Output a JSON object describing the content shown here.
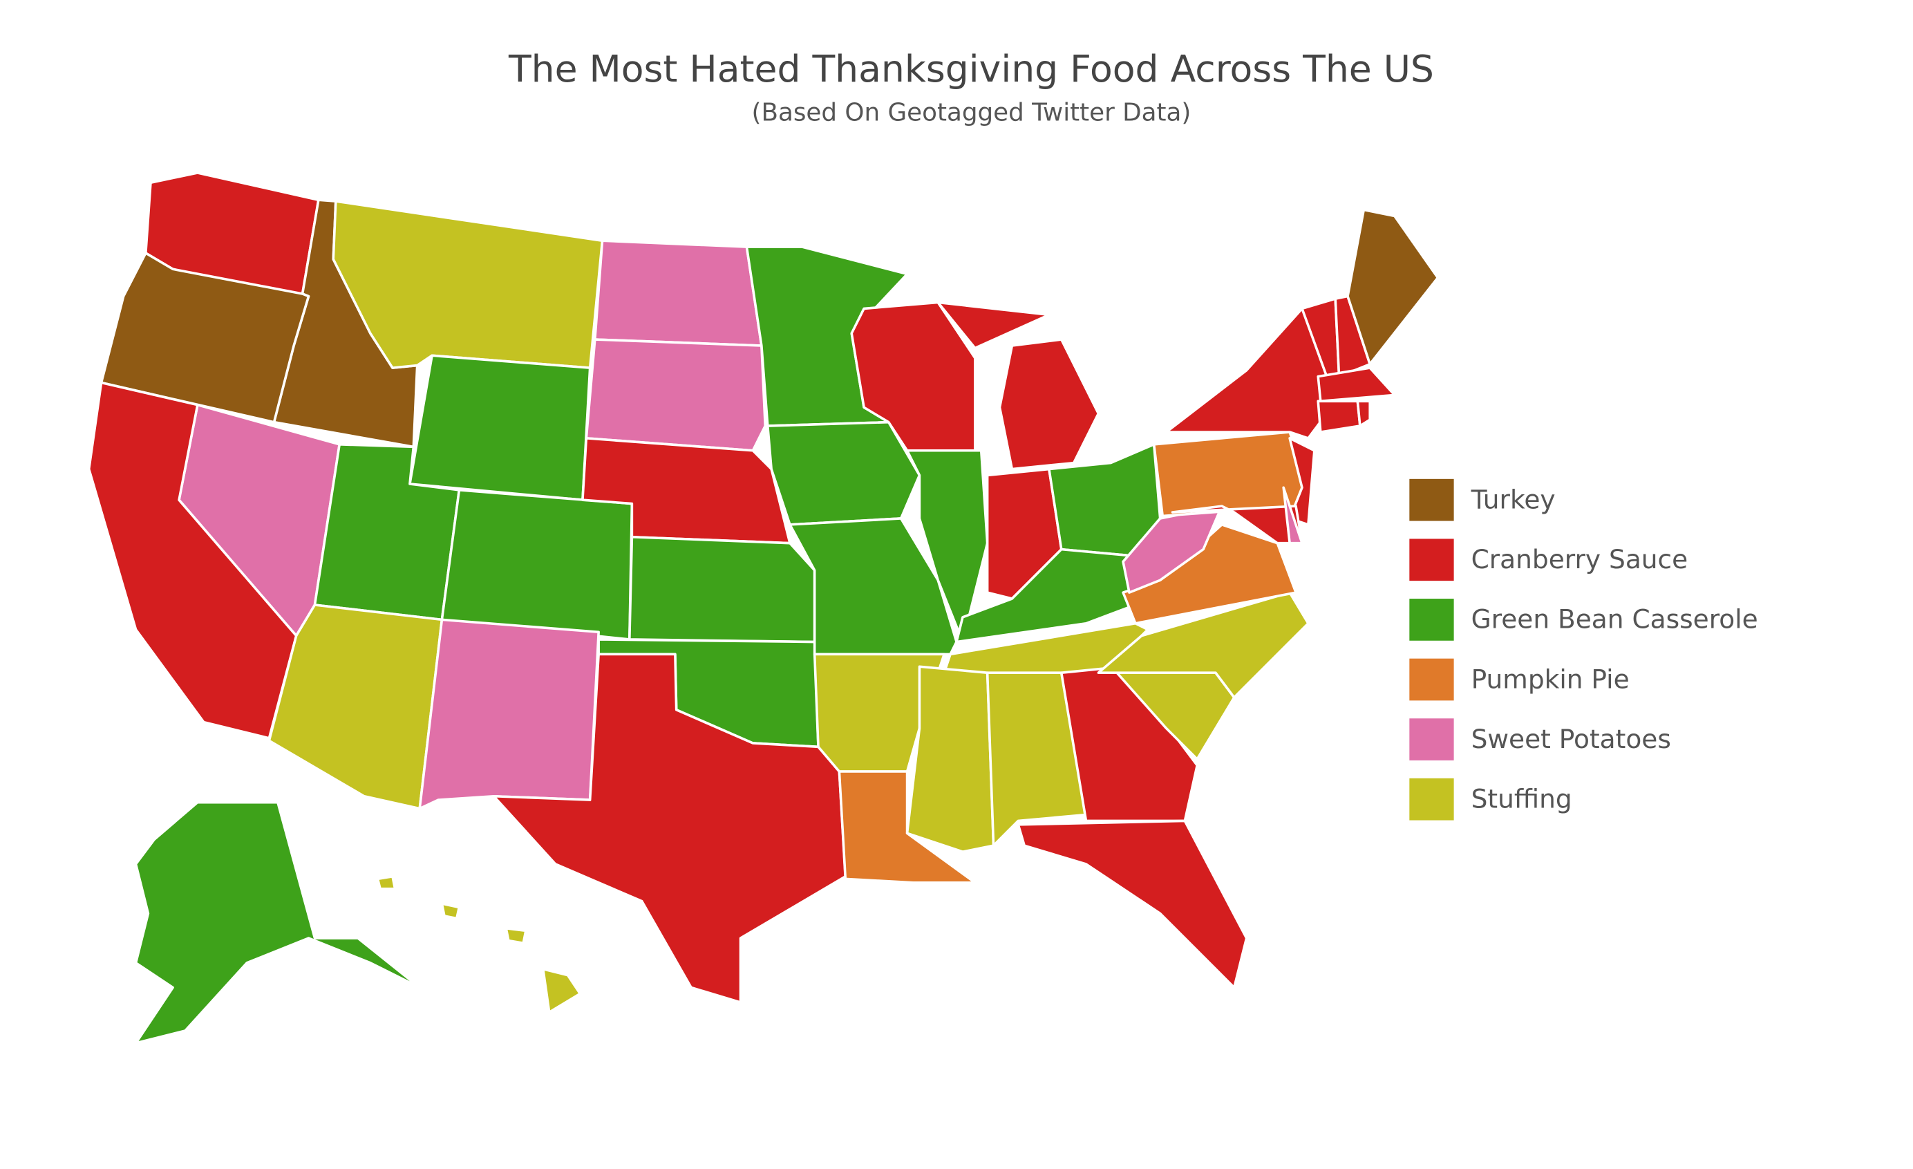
{
  "title": "The Most Hated Thanksgiving Food Across The US",
  "subtitle": "(Based On Geotagged Twitter Data)",
  "legend": {
    "items": [
      {
        "label": "Turkey",
        "color": "#8f5a14"
      },
      {
        "label": "Cranberry Sauce",
        "color": "#d41e1f"
      },
      {
        "label": "Green Bean Casserole",
        "color": "#3ea21a"
      },
      {
        "label": "Pumpkin Pie",
        "color": "#e07a2a"
      },
      {
        "label": "Sweet Potatoes",
        "color": "#e070a8"
      },
      {
        "label": "Stuffing",
        "color": "#c4c222"
      }
    ]
  }
}
